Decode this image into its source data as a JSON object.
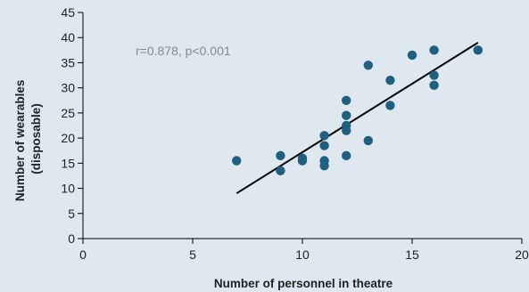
{
  "chart_data": {
    "type": "scatter",
    "title": "",
    "xlabel": "Number of personnel in theatre",
    "ylabel_lines": [
      "Number of wearables",
      "(disposable)"
    ],
    "xlim": [
      0,
      20
    ],
    "ylim": [
      0,
      45
    ],
    "x_ticks": [
      0,
      5,
      10,
      15,
      20
    ],
    "y_ticks": [
      0,
      5,
      10,
      15,
      20,
      25,
      30,
      35,
      40,
      45
    ],
    "grid": false,
    "annotation": "r=0.878, p<0.001",
    "points": [
      {
        "x": 7,
        "y": 15.5
      },
      {
        "x": 9,
        "y": 16.5
      },
      {
        "x": 9,
        "y": 13.5
      },
      {
        "x": 10,
        "y": 16
      },
      {
        "x": 10,
        "y": 15.5
      },
      {
        "x": 11,
        "y": 20.5
      },
      {
        "x": 11,
        "y": 18.5
      },
      {
        "x": 11,
        "y": 15.5
      },
      {
        "x": 11,
        "y": 14.5
      },
      {
        "x": 12,
        "y": 27.5
      },
      {
        "x": 12,
        "y": 24.5
      },
      {
        "x": 12,
        "y": 22.5
      },
      {
        "x": 12,
        "y": 21.5
      },
      {
        "x": 12,
        "y": 16.5
      },
      {
        "x": 13,
        "y": 34.5
      },
      {
        "x": 13,
        "y": 19.5
      },
      {
        "x": 14,
        "y": 31.5
      },
      {
        "x": 14,
        "y": 26.5
      },
      {
        "x": 15,
        "y": 36.5
      },
      {
        "x": 16,
        "y": 37.5
      },
      {
        "x": 16,
        "y": 32.5
      },
      {
        "x": 16,
        "y": 30.5
      },
      {
        "x": 18,
        "y": 37.5
      }
    ],
    "trendline": {
      "x": [
        7,
        18
      ],
      "y": [
        9,
        39
      ]
    },
    "colors": {
      "background": "#dfe8ef",
      "point": "#1f5f80",
      "trendline": "#000000",
      "axis": "#000000",
      "annotation": "#8a8a8a"
    }
  }
}
